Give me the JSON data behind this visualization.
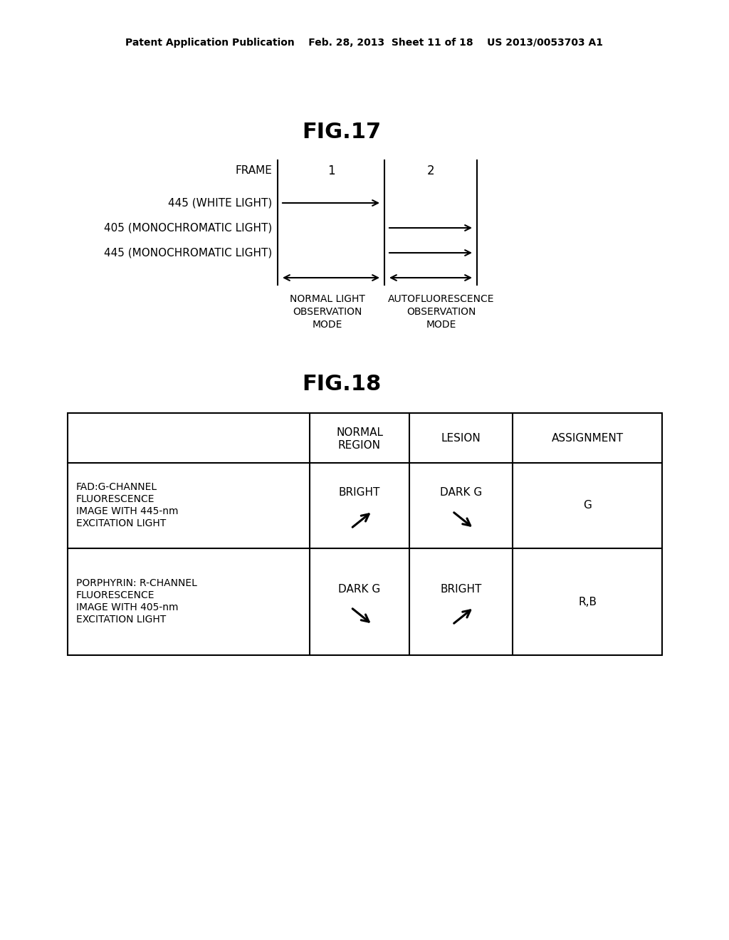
{
  "bg_color": "#ffffff",
  "header_text": "Patent Application Publication    Feb. 28, 2013  Sheet 11 of 18    US 2013/0053703 A1",
  "fig17_title": "FIG.17",
  "fig18_title": "FIG.18",
  "font_color": "#000000",
  "line_color": "#000000",
  "row_labels": [
    "445 (WHITE LIGHT)",
    "405 (MONOCHROMATIC LIGHT)",
    "445 (MONOCHROMATIC LIGHT)"
  ]
}
